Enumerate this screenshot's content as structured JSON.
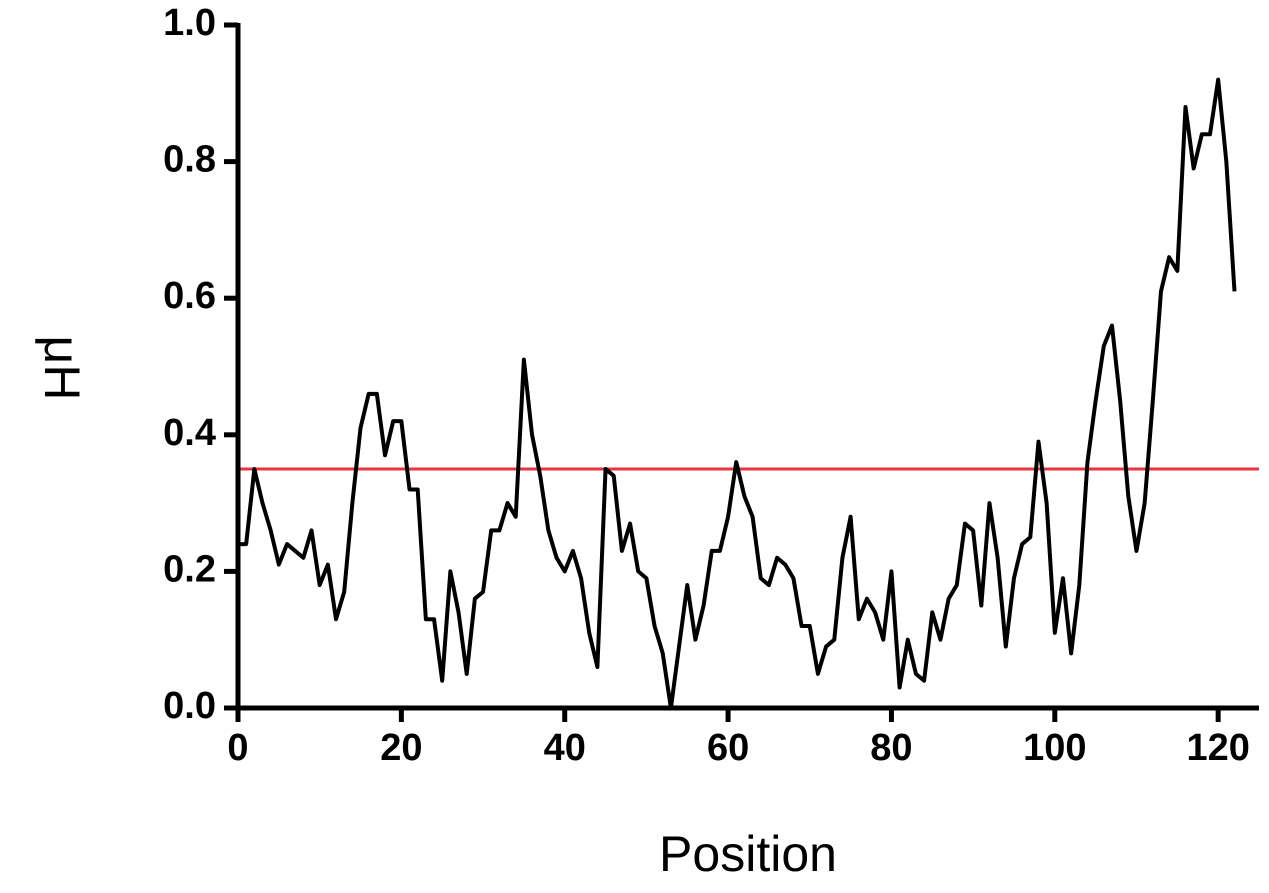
{
  "chart_data": {
    "type": "line",
    "xlabel": "Position",
    "ylabel": "μH",
    "xlim": [
      0,
      125
    ],
    "ylim": [
      0,
      1
    ],
    "xticks": [
      0,
      20,
      40,
      60,
      80,
      100,
      120
    ],
    "yticks": [
      {
        "value": 0,
        "label": "0.0"
      },
      0.2,
      0.4,
      0.6,
      0.8,
      {
        "value": 1,
        "label": "1.0"
      }
    ],
    "hline": {
      "value": 0.35,
      "color": "#e8343f"
    },
    "series": [
      {
        "color": "#000000",
        "x": [
          0,
          1,
          2,
          3,
          4,
          5,
          6,
          7,
          8,
          9,
          10,
          11,
          12,
          13,
          14,
          15,
          16,
          17,
          18,
          19,
          20,
          21,
          22,
          23,
          24,
          25,
          26,
          27,
          28,
          29,
          30,
          31,
          32,
          33,
          34,
          35,
          36,
          37,
          38,
          39,
          40,
          41,
          42,
          43,
          44,
          45,
          46,
          47,
          48,
          49,
          50,
          51,
          52,
          53,
          54,
          55,
          56,
          57,
          58,
          59,
          60,
          61,
          62,
          63,
          64,
          65,
          66,
          67,
          68,
          69,
          70,
          71,
          72,
          73,
          74,
          75,
          76,
          77,
          78,
          79,
          80,
          81,
          82,
          83,
          84,
          85,
          86,
          87,
          88,
          89,
          90,
          91,
          92,
          93,
          94,
          95,
          96,
          97,
          98,
          99,
          100,
          101,
          102,
          103,
          104,
          105,
          106,
          107,
          108,
          109,
          110,
          111,
          112,
          113,
          114,
          115,
          116,
          117,
          118,
          119,
          120,
          121,
          122
        ],
        "values": [
          0.24,
          0.24,
          0.35,
          0.3,
          0.26,
          0.21,
          0.24,
          0.23,
          0.22,
          0.26,
          0.18,
          0.21,
          0.13,
          0.17,
          0.3,
          0.41,
          0.46,
          0.46,
          0.37,
          0.42,
          0.42,
          0.32,
          0.32,
          0.13,
          0.13,
          0.04,
          0.2,
          0.14,
          0.05,
          0.16,
          0.17,
          0.26,
          0.26,
          0.3,
          0.28,
          0.51,
          0.4,
          0.34,
          0.26,
          0.22,
          0.2,
          0.23,
          0.19,
          0.11,
          0.06,
          0.35,
          0.34,
          0.23,
          0.27,
          0.2,
          0.19,
          0.12,
          0.08,
          0.0,
          0.09,
          0.18,
          0.1,
          0.15,
          0.23,
          0.23,
          0.28,
          0.36,
          0.31,
          0.28,
          0.19,
          0.18,
          0.22,
          0.21,
          0.19,
          0.12,
          0.12,
          0.05,
          0.09,
          0.1,
          0.22,
          0.28,
          0.13,
          0.16,
          0.14,
          0.1,
          0.2,
          0.03,
          0.1,
          0.05,
          0.04,
          0.14,
          0.1,
          0.16,
          0.18,
          0.27,
          0.26,
          0.15,
          0.3,
          0.22,
          0.09,
          0.19,
          0.24,
          0.25,
          0.39,
          0.3,
          0.11,
          0.19,
          0.08,
          0.18,
          0.36,
          0.45,
          0.53,
          0.56,
          0.45,
          0.31,
          0.23,
          0.3,
          0.45,
          0.61,
          0.66,
          0.64,
          0.88,
          0.79,
          0.84,
          0.84,
          0.92,
          0.8,
          0.61
        ]
      }
    ]
  }
}
